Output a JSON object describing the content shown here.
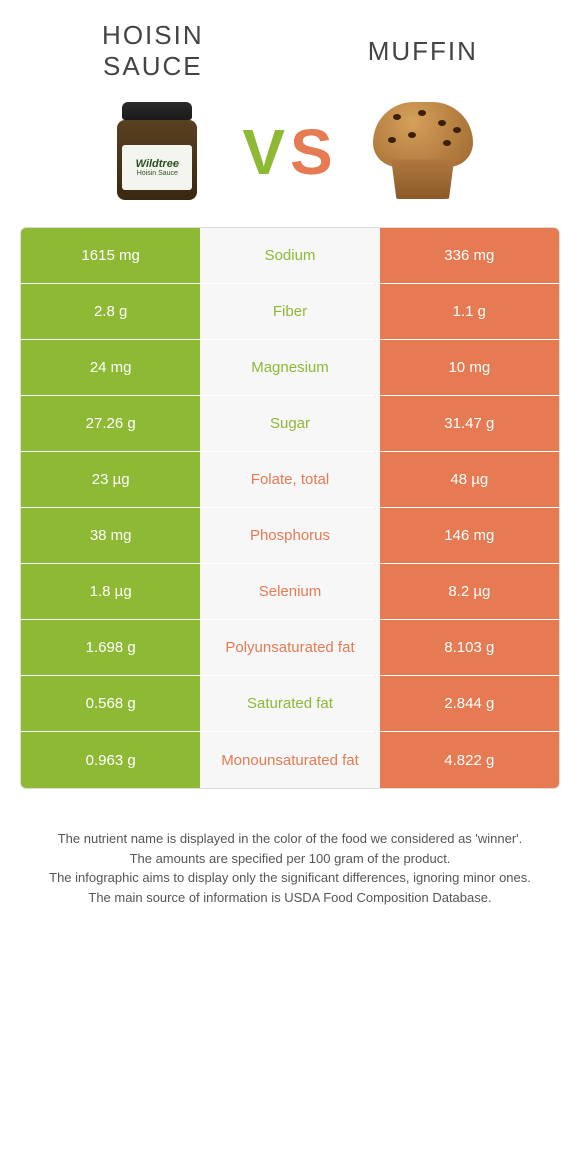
{
  "foods": {
    "left": {
      "name": "Hoisin\nsauce",
      "color": "#8eb935"
    },
    "right": {
      "name": "Muffin",
      "color": "#e67a52"
    }
  },
  "vs_text": {
    "v": "V",
    "s": "S"
  },
  "jar_label": {
    "brand": "Wildtree",
    "product": "Hoisin Sauce"
  },
  "table": {
    "rows": [
      {
        "left": "1615 mg",
        "label": "Sodium",
        "right": "336 mg",
        "winner": "green"
      },
      {
        "left": "2.8 g",
        "label": "Fiber",
        "right": "1.1 g",
        "winner": "green"
      },
      {
        "left": "24 mg",
        "label": "Magnesium",
        "right": "10 mg",
        "winner": "green"
      },
      {
        "left": "27.26 g",
        "label": "Sugar",
        "right": "31.47 g",
        "winner": "green"
      },
      {
        "left": "23 µg",
        "label": "Folate, total",
        "right": "48 µg",
        "winner": "orange"
      },
      {
        "left": "38 mg",
        "label": "Phosphorus",
        "right": "146 mg",
        "winner": "orange"
      },
      {
        "left": "1.8 µg",
        "label": "Selenium",
        "right": "8.2 µg",
        "winner": "orange"
      },
      {
        "left": "1.698 g",
        "label": "Polyunsaturated fat",
        "right": "8.103 g",
        "winner": "orange"
      },
      {
        "left": "0.568 g",
        "label": "Saturated fat",
        "right": "2.844 g",
        "winner": "green"
      },
      {
        "left": "0.963 g",
        "label": "Monounsaturated fat",
        "right": "4.822 g",
        "winner": "orange"
      }
    ]
  },
  "footer": {
    "line1": "The nutrient name is displayed in the color of the food we considered as 'winner'.",
    "line2": "The amounts are specified per 100 gram of the product.",
    "line3": "The infographic aims to display only the significant differences, ignoring minor ones.",
    "line4": "The main source of information is USDA Food Composition Database."
  },
  "colors": {
    "green": "#8eb935",
    "orange": "#e67a52",
    "bg": "#ffffff",
    "mid_bg": "#f7f7f7"
  }
}
